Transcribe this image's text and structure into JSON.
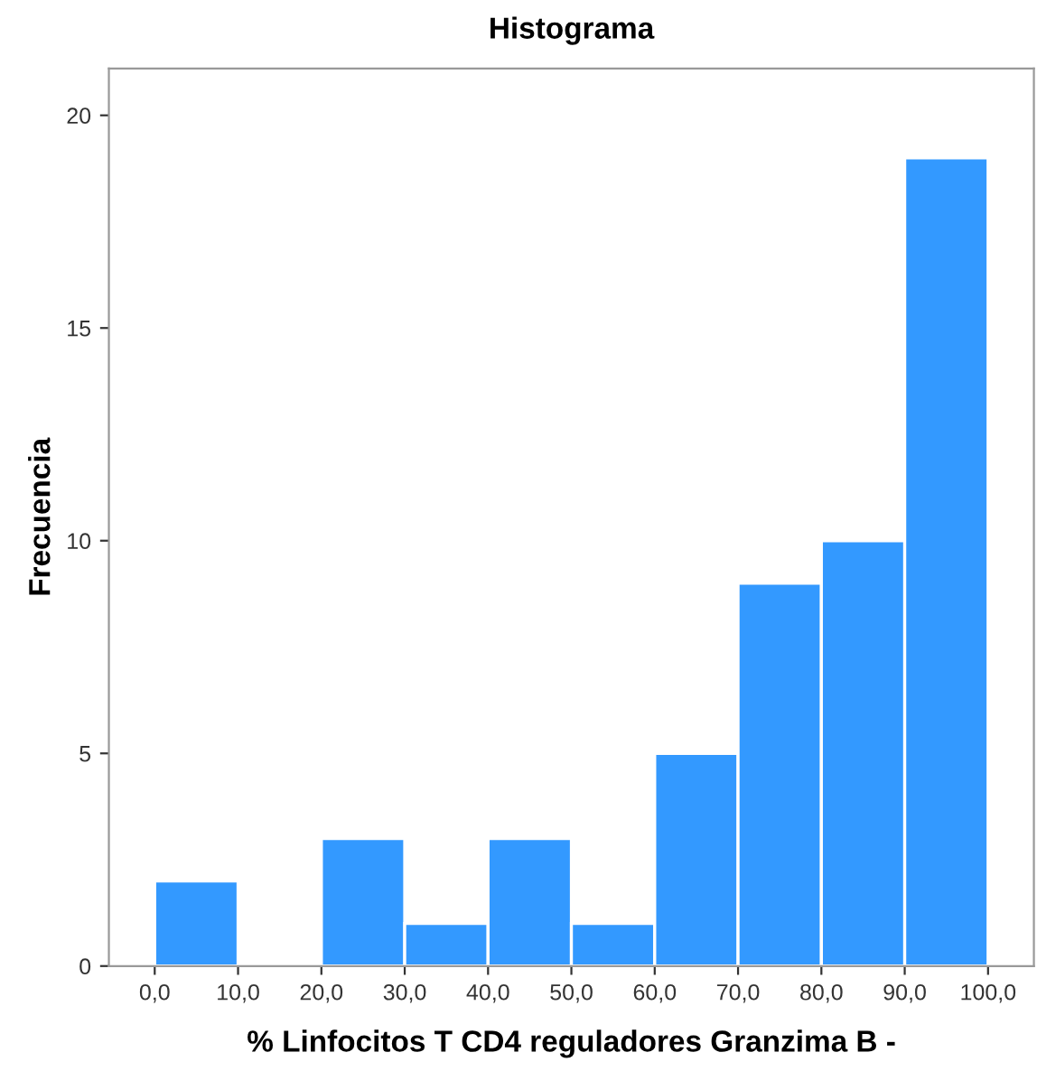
{
  "chart_data": {
    "type": "histogram",
    "title": "Histograma",
    "xlabel": "% Linfocitos T CD4 reguladores Granzima B -",
    "ylabel": "Frecuencia",
    "bins": [
      0,
      10,
      20,
      30,
      40,
      50,
      60,
      70,
      80,
      90,
      100
    ],
    "values": [
      2,
      0,
      3,
      1,
      3,
      1,
      5,
      9,
      10,
      19
    ],
    "color": "#3399ff",
    "xlim": [
      -5.5,
      105.5
    ],
    "xticks": [
      {
        "value": 0,
        "label": "0,0"
      },
      {
        "value": 10,
        "label": "10,0"
      },
      {
        "value": 20,
        "label": "20,0"
      },
      {
        "value": 30,
        "label": "30,0"
      },
      {
        "value": 40,
        "label": "40,0"
      },
      {
        "value": 50,
        "label": "50,0"
      },
      {
        "value": 60,
        "label": "60,0"
      },
      {
        "value": 70,
        "label": "70,0"
      },
      {
        "value": 80,
        "label": "80,0"
      },
      {
        "value": 90,
        "label": "90,0"
      },
      {
        "value": 100,
        "label": "100,0"
      }
    ],
    "ylim": [
      0,
      21.1
    ],
    "yticks": [
      0,
      5,
      10,
      15,
      20
    ],
    "grid": false,
    "legend": false
  }
}
